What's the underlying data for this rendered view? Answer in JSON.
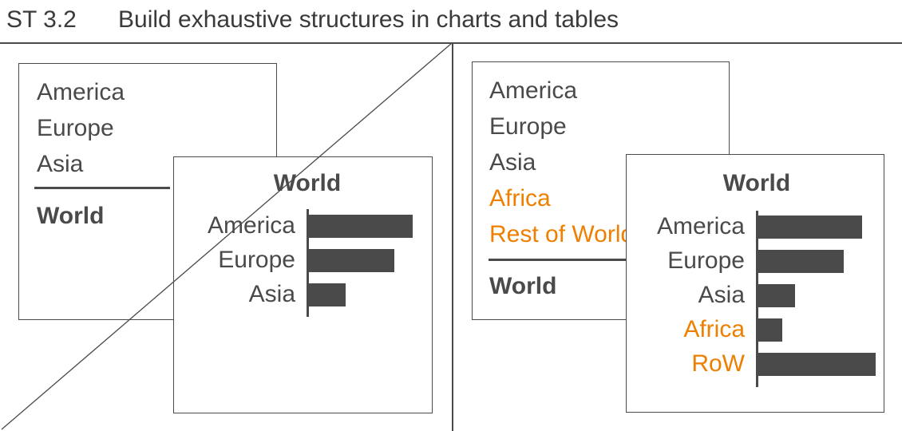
{
  "header": {
    "code": "ST 3.2",
    "title": "Build exhaustive structures in charts and tables"
  },
  "left_panel": {
    "table": {
      "rows": [
        "America",
        "Europe",
        "Asia"
      ],
      "total": "World"
    },
    "chart_title": "World"
  },
  "right_panel": {
    "table": {
      "rows": [
        "America",
        "Europe",
        "Asia"
      ],
      "added_rows": [
        "Africa",
        "Rest of World"
      ],
      "total": "World"
    },
    "chart_title": "World"
  },
  "chart_data": [
    {
      "type": "bar",
      "title": "World",
      "categories": [
        "America",
        "Europe",
        "Asia"
      ],
      "values": [
        100,
        82,
        35
      ],
      "highlight": []
    },
    {
      "type": "bar",
      "title": "World",
      "categories": [
        "America",
        "Europe",
        "Asia",
        "Africa",
        "RoW"
      ],
      "values": [
        100,
        82,
        35,
        23,
        113
      ],
      "highlight": [
        "Africa",
        "RoW"
      ]
    }
  ],
  "colors": {
    "text": "#4a4a4a",
    "bar": "#4a4a4a",
    "highlight": "#ee7f00",
    "background": "#ffffff"
  }
}
